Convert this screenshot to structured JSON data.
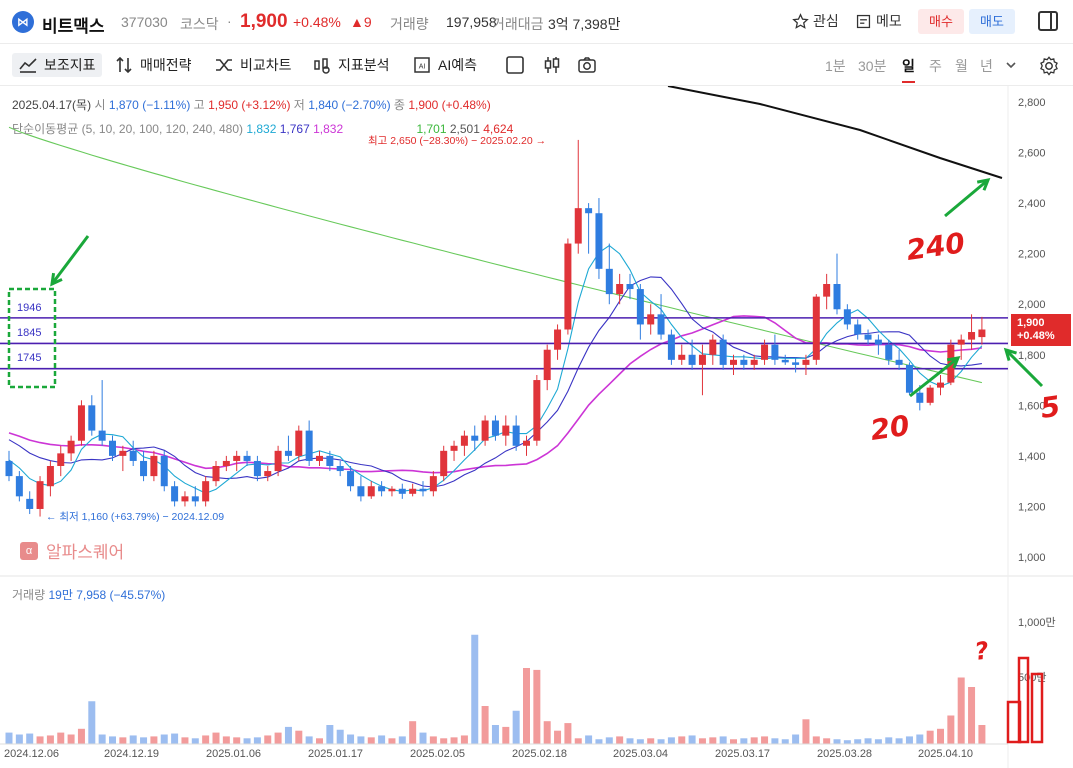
{
  "header": {
    "name": "비트맥스",
    "code": "377030",
    "market": "코스닥",
    "price": "1,900",
    "pct": "+0.48%",
    "change": "▲9",
    "volume_label": "거래량",
    "volume": "197,958",
    "amount_label": "거래대금",
    "amount": "3억 7,398만",
    "fav_label": "관심",
    "memo_label": "메모",
    "buy_label": "매수",
    "sell_label": "매도",
    "dot": "·"
  },
  "toolbar": {
    "indicators": "보조지표",
    "strategy": "매매전략",
    "compare": "비교차트",
    "analysis": "지표분석",
    "ai": "AI예측",
    "periods": [
      "1분",
      "30분",
      "일",
      "주",
      "월",
      "년"
    ]
  },
  "info": {
    "date": "2025.04.17(목)",
    "open_label": "시",
    "open": "1,870 (−1.11%)",
    "high_label": "고",
    "high": "1,950 (+3.12%)",
    "low_label": "저",
    "low": "1,840 (−2.70%)",
    "close_label": "종",
    "close": "1,900 (+0.48%)",
    "ma_title": "단순이동평균 (5, 10, 20, 100, 120, 240, 480)",
    "ma5": "1,832",
    "ma10": "1,767",
    "ma20": "1,832",
    "ma120": "1,701",
    "ma240": "2,501",
    "ma480": "4,624"
  },
  "annotations": {
    "high": "최고 2,650 (−28.30%) − 2025.02.20 →",
    "low": "← 최저 1,160 (+63.79%) − 2024.12.09",
    "box_levels": [
      "1946",
      "1845",
      "1745"
    ],
    "hand_240": "240",
    "hand_20": "20",
    "hand_5": "5",
    "hand_q": "?"
  },
  "watermark": "알파스퀘어",
  "price_label": {
    "price": "1,900",
    "pct": "+0.48%"
  },
  "volume_info": {
    "label": "거래량",
    "value": "19만 7,958 (−45.57%)"
  },
  "yaxis": [
    "2,800",
    "2,600",
    "2,400",
    "2,200",
    "2,000",
    "1,800",
    "1,600",
    "1,400",
    "1,200",
    "1,000"
  ],
  "vol_axis": [
    "1,000만",
    "500만"
  ],
  "xaxis": [
    "2024.12.06",
    "2024.12.19",
    "2025.01.06",
    "2025.01.17",
    "2025.02.05",
    "2025.02.18",
    "2025.03.04",
    "2025.03.17",
    "2025.03.28",
    "2025.04.10"
  ],
  "colors": {
    "up": "#e0343a",
    "down": "#2f7de0",
    "up_vol": "#f29b9b",
    "down_vol": "#9cbdf0"
  },
  "chart_data": {
    "type": "candlestick",
    "ylim": [
      1000,
      2800
    ],
    "h_lines": [
      1946,
      1845,
      1745
    ],
    "candles": [
      [
        1380,
        1420,
        1300,
        1320
      ],
      [
        1320,
        1340,
        1220,
        1240
      ],
      [
        1230,
        1260,
        1170,
        1190
      ],
      [
        1190,
        1320,
        1160,
        1300
      ],
      [
        1280,
        1380,
        1240,
        1360
      ],
      [
        1360,
        1440,
        1320,
        1410
      ],
      [
        1410,
        1480,
        1380,
        1460
      ],
      [
        1460,
        1620,
        1440,
        1600
      ],
      [
        1600,
        1640,
        1480,
        1500
      ],
      [
        1500,
        1700,
        1440,
        1460
      ],
      [
        1460,
        1480,
        1380,
        1400
      ],
      [
        1400,
        1440,
        1340,
        1420
      ],
      [
        1420,
        1460,
        1360,
        1380
      ],
      [
        1380,
        1420,
        1300,
        1320
      ],
      [
        1320,
        1420,
        1300,
        1400
      ],
      [
        1400,
        1420,
        1260,
        1280
      ],
      [
        1280,
        1300,
        1200,
        1220
      ],
      [
        1220,
        1260,
        1200,
        1240
      ],
      [
        1240,
        1280,
        1200,
        1220
      ],
      [
        1220,
        1320,
        1200,
        1300
      ],
      [
        1300,
        1380,
        1280,
        1360
      ],
      [
        1360,
        1400,
        1340,
        1380
      ],
      [
        1380,
        1420,
        1340,
        1400
      ],
      [
        1400,
        1420,
        1360,
        1380
      ],
      [
        1380,
        1400,
        1300,
        1320
      ],
      [
        1320,
        1360,
        1300,
        1340
      ],
      [
        1340,
        1440,
        1320,
        1420
      ],
      [
        1420,
        1480,
        1380,
        1400
      ],
      [
        1400,
        1520,
        1380,
        1500
      ],
      [
        1500,
        1540,
        1360,
        1380
      ],
      [
        1380,
        1420,
        1360,
        1400
      ],
      [
        1400,
        1420,
        1340,
        1360
      ],
      [
        1360,
        1380,
        1320,
        1340
      ],
      [
        1340,
        1360,
        1260,
        1280
      ],
      [
        1280,
        1320,
        1220,
        1240
      ],
      [
        1240,
        1300,
        1230,
        1280
      ],
      [
        1280,
        1300,
        1240,
        1260
      ],
      [
        1260,
        1280,
        1240,
        1270
      ],
      [
        1270,
        1290,
        1230,
        1250
      ],
      [
        1250,
        1290,
        1240,
        1270
      ],
      [
        1270,
        1300,
        1240,
        1260
      ],
      [
        1260,
        1340,
        1240,
        1320
      ],
      [
        1320,
        1440,
        1300,
        1420
      ],
      [
        1420,
        1460,
        1380,
        1440
      ],
      [
        1440,
        1500,
        1400,
        1480
      ],
      [
        1480,
        1520,
        1420,
        1460
      ],
      [
        1460,
        1560,
        1440,
        1540
      ],
      [
        1540,
        1560,
        1460,
        1480
      ],
      [
        1480,
        1560,
        1440,
        1520
      ],
      [
        1520,
        1560,
        1420,
        1440
      ],
      [
        1440,
        1480,
        1400,
        1460
      ],
      [
        1460,
        1720,
        1440,
        1700
      ],
      [
        1700,
        1840,
        1660,
        1820
      ],
      [
        1820,
        1920,
        1780,
        1900
      ],
      [
        1900,
        2260,
        1880,
        2240
      ],
      [
        2240,
        2650,
        2200,
        2380
      ],
      [
        2380,
        2400,
        2200,
        2360
      ],
      [
        2360,
        2420,
        2100,
        2140
      ],
      [
        2140,
        2240,
        2000,
        2040
      ],
      [
        2040,
        2120,
        2000,
        2080
      ],
      [
        2080,
        2120,
        2020,
        2060
      ],
      [
        2060,
        2080,
        1860,
        1920
      ],
      [
        1920,
        2000,
        1880,
        1960
      ],
      [
        1960,
        2040,
        1860,
        1880
      ],
      [
        1880,
        1900,
        1760,
        1780
      ],
      [
        1780,
        1840,
        1760,
        1800
      ],
      [
        1800,
        1860,
        1740,
        1760
      ],
      [
        1760,
        1840,
        1640,
        1800
      ],
      [
        1800,
        1880,
        1760,
        1860
      ],
      [
        1860,
        1880,
        1740,
        1760
      ],
      [
        1760,
        1800,
        1720,
        1780
      ],
      [
        1780,
        1800,
        1740,
        1760
      ],
      [
        1760,
        1800,
        1740,
        1780
      ],
      [
        1780,
        1860,
        1760,
        1840
      ],
      [
        1840,
        1880,
        1760,
        1780
      ],
      [
        1780,
        1800,
        1760,
        1770
      ],
      [
        1770,
        1790,
        1730,
        1760
      ],
      [
        1760,
        1800,
        1720,
        1780
      ],
      [
        1780,
        2040,
        1760,
        2030
      ],
      [
        2030,
        2120,
        1980,
        2080
      ],
      [
        2080,
        2200,
        1960,
        1980
      ],
      [
        1980,
        2000,
        1900,
        1920
      ],
      [
        1920,
        1940,
        1860,
        1880
      ],
      [
        1880,
        1900,
        1840,
        1860
      ],
      [
        1860,
        1880,
        1800,
        1840
      ],
      [
        1840,
        1860,
        1760,
        1780
      ],
      [
        1780,
        1820,
        1740,
        1760
      ],
      [
        1760,
        1770,
        1640,
        1650
      ],
      [
        1650,
        1680,
        1580,
        1610
      ],
      [
        1610,
        1680,
        1600,
        1670
      ],
      [
        1670,
        1720,
        1640,
        1690
      ],
      [
        1690,
        1860,
        1680,
        1840
      ],
      [
        1840,
        1880,
        1780,
        1860
      ],
      [
        1860,
        1960,
        1820,
        1890
      ],
      [
        1870,
        1950,
        1840,
        1900
      ]
    ],
    "volume": [
      12,
      10,
      11,
      8,
      9,
      12,
      10,
      16,
      45,
      10,
      8,
      7,
      9,
      7,
      8,
      10,
      11,
      7,
      6,
      9,
      12,
      8,
      7,
      6,
      7,
      9,
      12,
      18,
      14,
      8,
      6,
      20,
      15,
      10,
      8,
      7,
      9,
      6,
      8,
      24,
      12,
      8,
      6,
      7,
      9,
      115,
      40,
      20,
      18,
      35,
      80,
      78,
      24,
      14,
      22,
      6,
      9,
      5,
      7,
      8,
      6,
      5,
      6,
      5,
      7,
      8,
      9,
      6,
      7,
      8,
      5,
      6,
      7,
      8,
      6,
      5,
      10,
      26,
      8,
      6,
      5,
      4,
      5,
      6,
      5,
      7,
      6,
      8,
      10,
      14,
      16,
      30,
      70,
      60,
      20
    ],
    "ma_lines": [
      {
        "name": "5",
        "color": "#1ea9d4"
      },
      {
        "name": "10",
        "color": "#3a34c4"
      },
      {
        "name": "20",
        "color": "#cc35d6"
      },
      {
        "name": "120",
        "color": "#67c95a"
      },
      {
        "name": "240",
        "color": "#111111"
      }
    ]
  }
}
